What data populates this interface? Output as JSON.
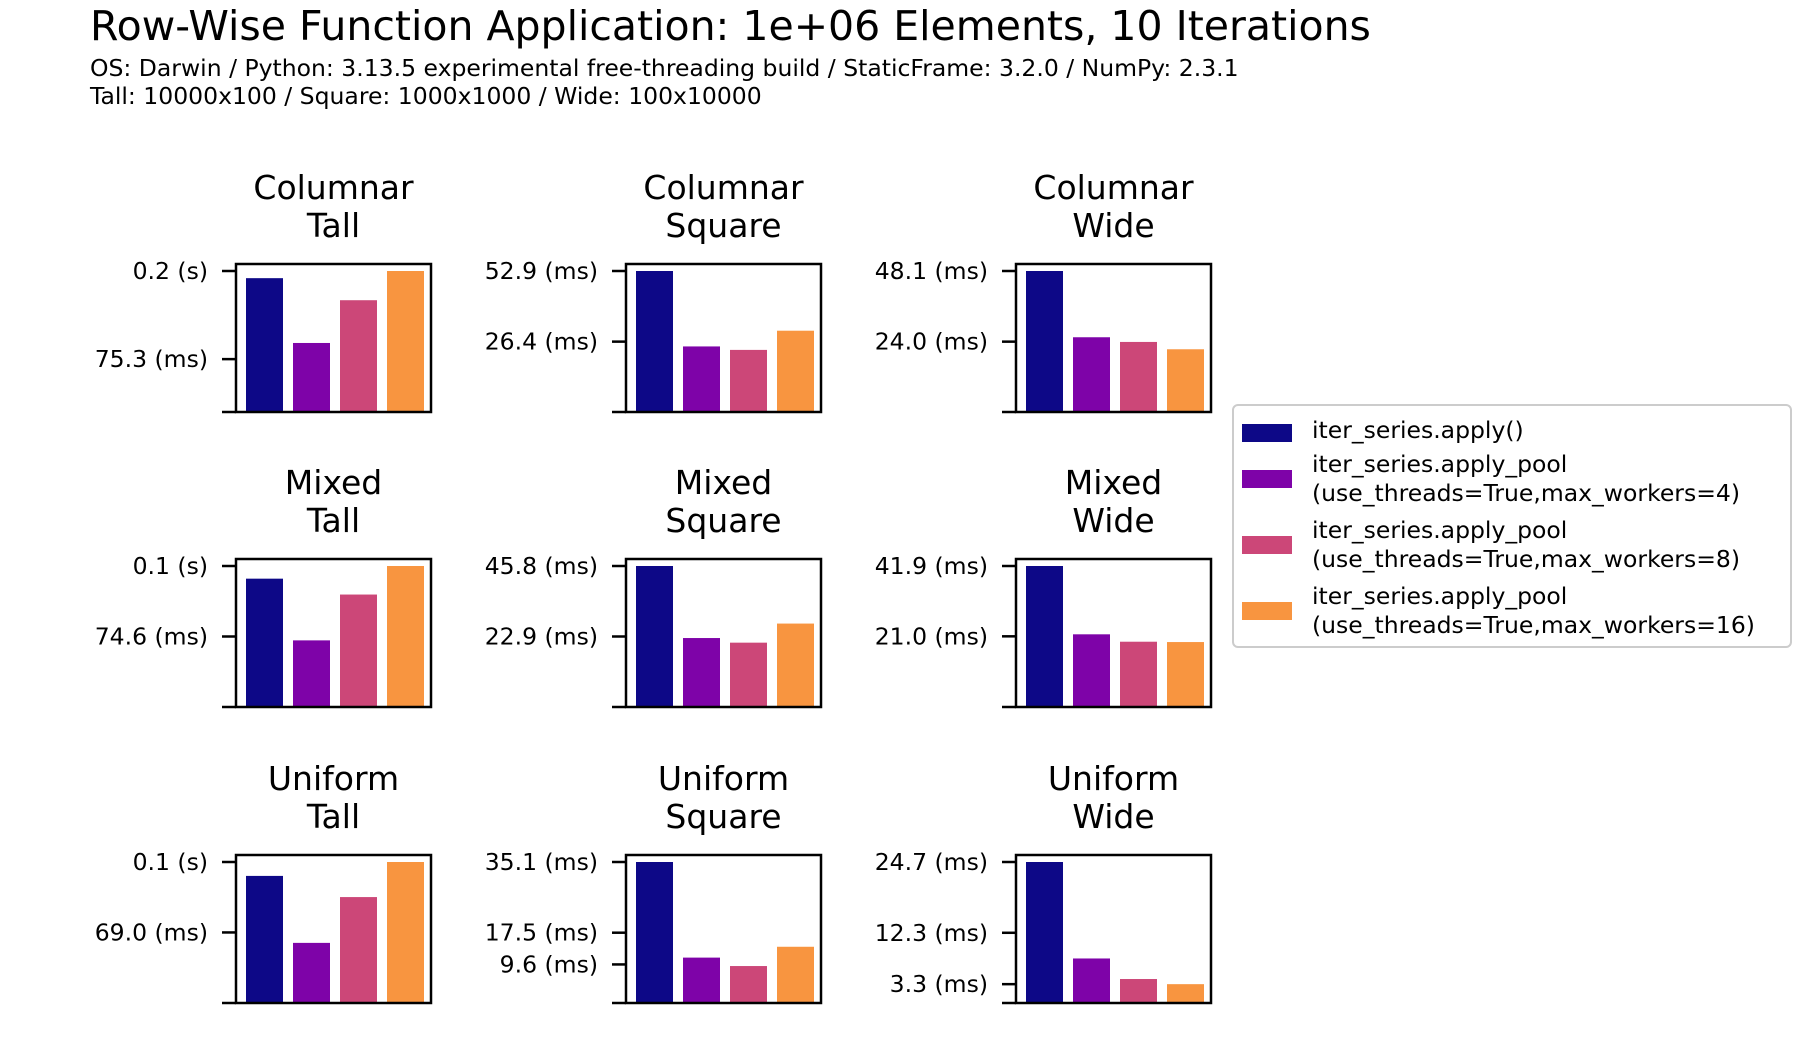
{
  "title": "Row-Wise Function Application: 1e+06 Elements, 10 Iterations",
  "subtitle_lines": [
    "OS: Darwin / Python: 3.13.5 experimental free-threading build / StaticFrame: 3.2.0 / NumPy: 2.3.1",
    "Tall: 10000x100 / Square: 1000x1000 / Wide: 100x10000"
  ],
  "legend": [
    {
      "label": "iter_series.apply()",
      "color": "#0d0887"
    },
    {
      "label": "iter_series.apply_pool\n(use_threads=True,max_workers=4)",
      "color": "#7e03a8"
    },
    {
      "label": "iter_series.apply_pool\n(use_threads=True,max_workers=8)",
      "color": "#cc4778"
    },
    {
      "label": "iter_series.apply_pool\n(use_threads=True,max_workers=16)",
      "color": "#f89540"
    }
  ],
  "chart_data": [
    {
      "type": "bar",
      "title": "Columnar\nTall",
      "unit": "s",
      "series_colors": [
        "#0d0887",
        "#7e03a8",
        "#cc4778",
        "#f89540"
      ],
      "values": [
        0.1906,
        0.0983,
        0.1592,
        0.2008
      ],
      "yticks": [
        {
          "value": 0.2008,
          "label": "0.2 (s)"
        },
        {
          "value": 0.0753,
          "label": "75.3 (ms)"
        }
      ]
    },
    {
      "type": "bar",
      "title": "Columnar\nSquare",
      "unit": "ms",
      "values": [
        52.9,
        24.6,
        23.3,
        30.5
      ],
      "yticks": [
        {
          "value": 52.9,
          "label": "52.9 (ms)"
        },
        {
          "value": 26.4,
          "label": "26.4 (ms)"
        }
      ]
    },
    {
      "type": "bar",
      "title": "Columnar\nWide",
      "unit": "ms",
      "values": [
        48.1,
        25.5,
        23.9,
        21.4
      ],
      "yticks": [
        {
          "value": 48.1,
          "label": "48.1 (ms)"
        },
        {
          "value": 24.0,
          "label": "24.0 (ms)"
        }
      ]
    },
    {
      "type": "bar",
      "title": "Mixed\nTall",
      "unit": "s",
      "values": [
        0.1358,
        0.0705,
        0.119,
        0.1492
      ],
      "yticks": [
        {
          "value": 0.1492,
          "label": "0.1 (s)"
        },
        {
          "value": 0.0746,
          "label": "74.6 (ms)"
        }
      ]
    },
    {
      "type": "bar",
      "title": "Mixed\nSquare",
      "unit": "ms",
      "values": [
        45.8,
        22.4,
        20.9,
        27.1
      ],
      "yticks": [
        {
          "value": 45.8,
          "label": "45.8 (ms)"
        },
        {
          "value": 22.9,
          "label": "22.9 (ms)"
        }
      ]
    },
    {
      "type": "bar",
      "title": "Mixed\nWide",
      "unit": "ms",
      "values": [
        41.9,
        21.6,
        19.4,
        19.3
      ],
      "yticks": [
        {
          "value": 41.9,
          "label": "41.9 (ms)"
        },
        {
          "value": 21.0,
          "label": "21.0 (ms)"
        }
      ]
    },
    {
      "type": "bar",
      "title": "Uniform\nTall",
      "unit": "s",
      "values": [
        0.1243,
        0.0588,
        0.1036,
        0.1379
      ],
      "yticks": [
        {
          "value": 0.1379,
          "label": "0.1 (s)"
        },
        {
          "value": 0.069,
          "label": "69.0 (ms)"
        }
      ]
    },
    {
      "type": "bar",
      "title": "Uniform\nSquare",
      "unit": "ms",
      "values": [
        35.1,
        11.3,
        9.2,
        14.0
      ],
      "yticks": [
        {
          "value": 35.1,
          "label": "35.1 (ms)"
        },
        {
          "value": 17.5,
          "label": "17.5 (ms)"
        },
        {
          "value": 9.6,
          "label": "9.6 (ms)"
        }
      ]
    },
    {
      "type": "bar",
      "title": "Uniform\nWide",
      "unit": "ms",
      "values": [
        24.7,
        7.8,
        4.2,
        3.3
      ],
      "yticks": [
        {
          "value": 24.7,
          "label": "24.7 (ms)"
        },
        {
          "value": 12.3,
          "label": "12.3 (ms)"
        },
        {
          "value": 3.3,
          "label": "3.3 (ms)"
        }
      ]
    }
  ]
}
